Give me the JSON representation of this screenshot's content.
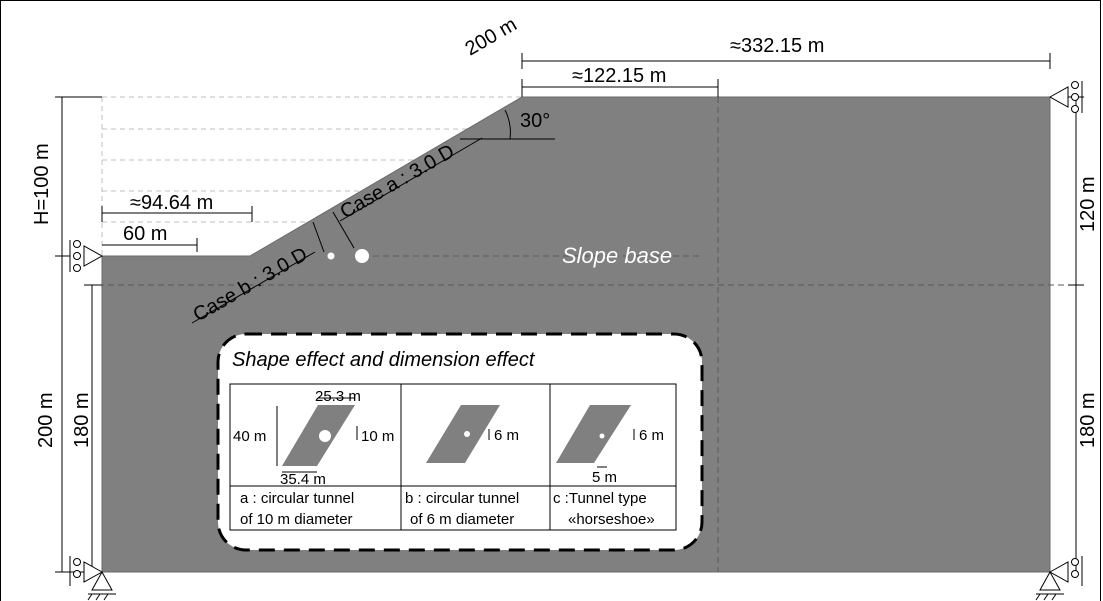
{
  "labels": {
    "dim_200_slope": "200 m",
    "dim_332": "≈332.15 m",
    "dim_122": "≈122.15 m",
    "angle_30": "30°",
    "dim_h100": "H=100 m",
    "dim_94": "≈94.64 m",
    "dim_60": "60 m",
    "case_a": "Case a : 3.0 D",
    "case_b": "Case b : 3.0 D",
    "slope_base": "Slope base",
    "dim_120": "120 m",
    "dim_200_left": "200 m",
    "dim_180_left": "180 m",
    "dim_180_right": "180 m"
  },
  "inset": {
    "title": "Shape effect and dimension effect",
    "panel_a": {
      "top_width": "25.3 m",
      "height": "40 m",
      "diameter": "10 m",
      "bottom_width": "35.4 m",
      "caption_line1": "a : circular tunnel",
      "caption_line2": "of 10 m diameter"
    },
    "panel_b": {
      "diameter": "6 m",
      "caption_line1": "b : circular tunnel",
      "caption_line2": "of 6 m diameter"
    },
    "panel_c": {
      "height": "6 m",
      "width": "5 m",
      "caption_line1": "c :Tunnel type",
      "caption_line2": "«horseshoe»"
    }
  },
  "colors": {
    "domain_fill": "#808080",
    "dashed_guides": "#bfbfbf",
    "frame": "#000000"
  }
}
